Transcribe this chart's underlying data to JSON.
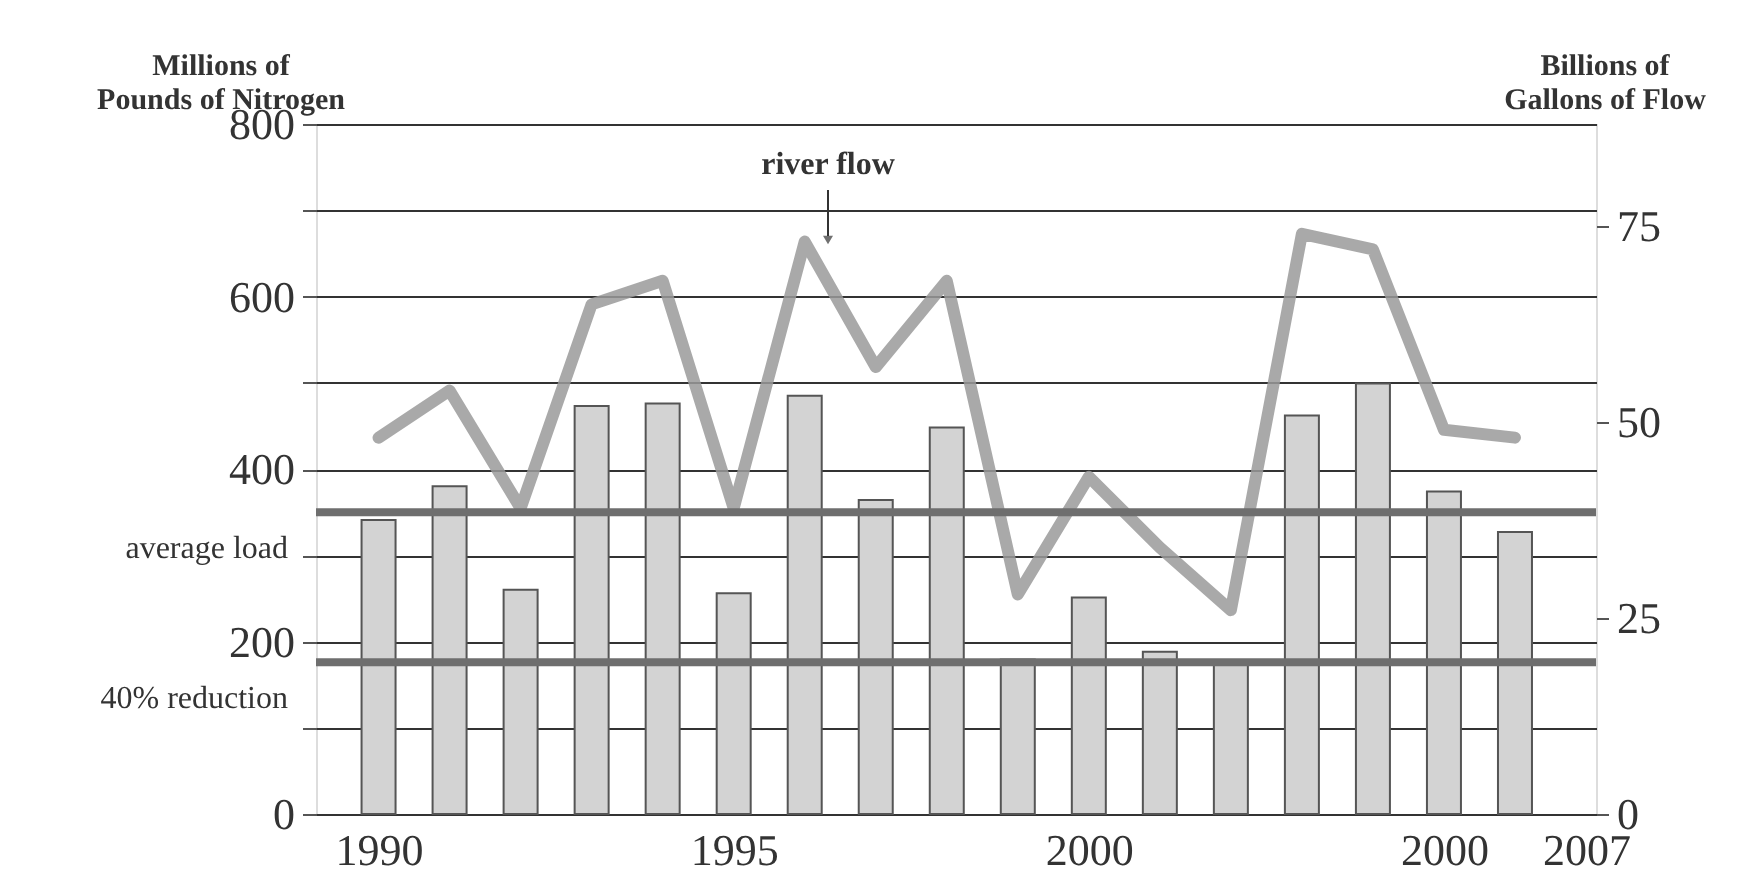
{
  "chart_data": {
    "type": "bar",
    "ylabel": "Millions of\nPounds of Nitrogen",
    "y2label": "Billions of\nGallons of Flow",
    "categories": [
      "1990",
      null,
      null,
      null,
      null,
      "1995",
      null,
      null,
      null,
      null,
      "2000",
      null,
      null,
      null,
      null,
      "2000",
      null,
      "2007"
    ],
    "ylim": [
      0,
      800
    ],
    "yticks": [
      0,
      {
        "value": 100,
        "label": null
      },
      200,
      {
        "value": 300,
        "label": null
      },
      400,
      {
        "value": 500,
        "label": null
      },
      600,
      {
        "value": 700,
        "label": null
      },
      800
    ],
    "y2lim": [
      0,
      88
    ],
    "y2ticks": [
      0,
      25,
      50,
      75
    ],
    "series": [
      {
        "type": "bar",
        "color": "#d3d3d3",
        "values": [
          341,
          380,
          260,
          473,
          476,
          256,
          485,
          364,
          448,
          179,
          251,
          188,
          174,
          462,
          499,
          374,
          327,
          null
        ]
      },
      {
        "type": "line",
        "axis": "y2",
        "color": "#9a9a9a",
        "values": [
          48,
          54,
          39,
          65,
          68,
          39,
          73,
          57,
          68,
          28,
          43,
          34,
          26,
          74,
          72,
          49,
          48,
          null
        ]
      }
    ],
    "ref_lines": [
      {
        "axis": "y",
        "value": 350,
        "label": "average load",
        "color": "#6e6e6e"
      },
      {
        "axis": "y",
        "value": 176,
        "label": "40% reduction",
        "color": "#6e6e6e"
      }
    ],
    "annotations": [
      "river flow"
    ],
    "grid": "y",
    "marker": "none"
  }
}
